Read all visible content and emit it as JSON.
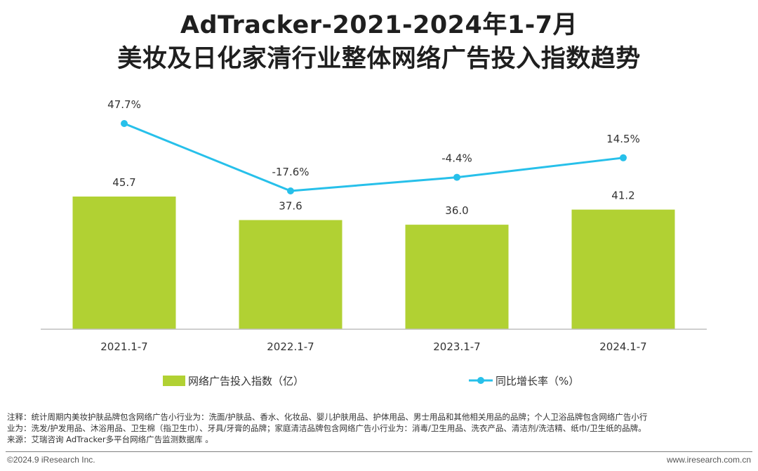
{
  "title": {
    "line1": "AdTracker-2021-2024年1-7月",
    "line2": "美妆及日化家清行业整体网络广告投入指数趋势"
  },
  "chart_data": {
    "type": "bar+line",
    "categories": [
      "2021.1-7",
      "2022.1-7",
      "2023.1-7",
      "2024.1-7"
    ],
    "series": [
      {
        "name": "网络广告投入指数（亿）",
        "kind": "bar",
        "values": [
          45.7,
          37.6,
          36.0,
          41.2
        ],
        "labels": [
          "45.7",
          "37.6",
          "36.0",
          "41.2"
        ],
        "color": "#b1d133"
      },
      {
        "name": "同比增长率（%）",
        "kind": "line",
        "values": [
          47.7,
          -17.6,
          -4.4,
          14.5
        ],
        "labels": [
          "47.7%",
          "-17.6%",
          "-4.4%",
          "14.5%"
        ],
        "color": "#27c0ea"
      }
    ],
    "bar_axis_range": [
      0,
      80
    ],
    "line_axis_range": [
      -60,
      80
    ],
    "grid": false,
    "legend_position": "bottom"
  },
  "notes": [
    "注释：统计周期内美妆护肤品牌包含网络广告小行业为：洗面/护肤品、香水、化妆品、婴儿护肤用品、护体用品、男士用品和其他相关用品的品牌；个人卫浴品牌包含网络广告小行",
    "业为：洗发/护发用品、沐浴用品、卫生棉（指卫生巾）、牙具/牙膏的品牌；家庭清洁品牌包含网络广告小行业为：消毒/卫生用品、洗衣产品、清洁剂/洗洁精、纸巾/卫生纸的品牌。",
    "来源：艾瑞咨询 AdTracker多平台网络广告监测数据库 。"
  ],
  "footer": {
    "left": "©2024.9 iResearch Inc.",
    "right": "www.iresearch.com.cn"
  }
}
